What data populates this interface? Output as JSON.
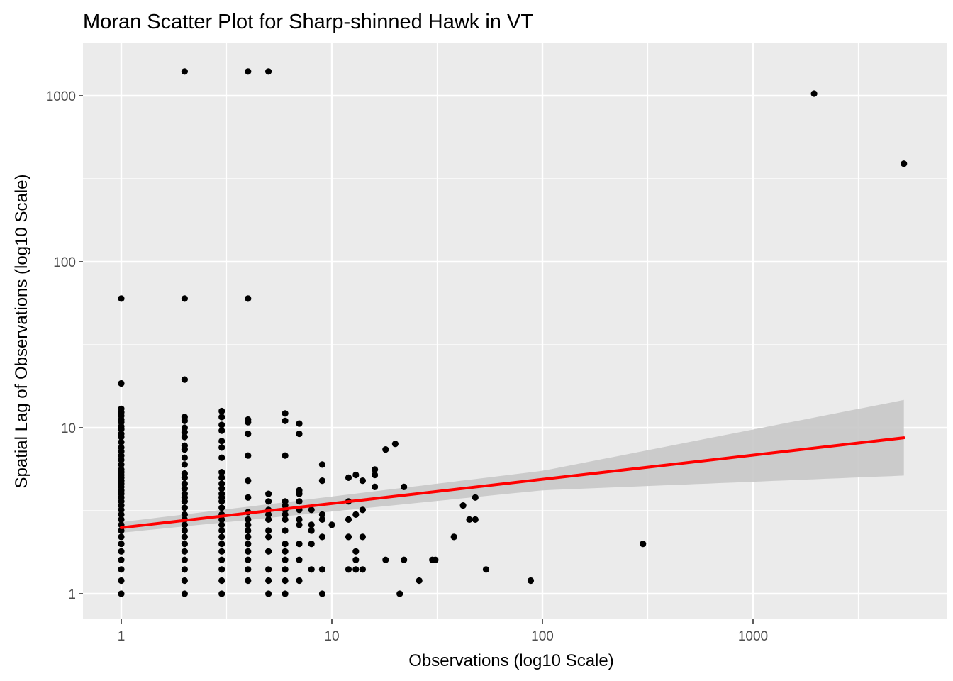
{
  "chart_data": {
    "type": "scatter",
    "title": "Moran Scatter Plot for Sharp-shinned Hawk in VT",
    "xlabel": "Observations (log10 Scale)",
    "ylabel": "Spatial Lag of Observations (log10 Scale)",
    "xscale": "log10",
    "yscale": "log10",
    "xlim": [
      0.65,
      6000
    ],
    "ylim": [
      0.85,
      2000
    ],
    "x_ticks": [
      1,
      10,
      100,
      1000
    ],
    "x_tick_labels": [
      "1",
      "10",
      "100",
      "1000"
    ],
    "y_ticks": [
      1,
      10,
      100,
      1000
    ],
    "y_tick_labels": [
      "1",
      "10",
      "100",
      "1000"
    ],
    "grid": true,
    "legend": "none",
    "colors": {
      "panel_background": "#ebebeb",
      "grid": "#ffffff",
      "points": "#000000",
      "fit_line": "#ff0000",
      "confidence_band": "#c8c8c8"
    },
    "points": [
      [
        1,
        1
      ],
      [
        1,
        1.2
      ],
      [
        1,
        1.4
      ],
      [
        1,
        1.6
      ],
      [
        1,
        1.8
      ],
      [
        1,
        2
      ],
      [
        1,
        2.2
      ],
      [
        1,
        2.4
      ],
      [
        1,
        2.6
      ],
      [
        1,
        2.8
      ],
      [
        1,
        3
      ],
      [
        1,
        3.2
      ],
      [
        1,
        3.4
      ],
      [
        1,
        3.6
      ],
      [
        1,
        3.8
      ],
      [
        1,
        4
      ],
      [
        1,
        4.2
      ],
      [
        1,
        4.4
      ],
      [
        1,
        4.6
      ],
      [
        1,
        4.8
      ],
      [
        1,
        5
      ],
      [
        1,
        5.2
      ],
      [
        1,
        5.4
      ],
      [
        1,
        5.6
      ],
      [
        1,
        6
      ],
      [
        1,
        6.4
      ],
      [
        1,
        6.8
      ],
      [
        1,
        7.2
      ],
      [
        1,
        7.6
      ],
      [
        1,
        8.2
      ],
      [
        1,
        8.8
      ],
      [
        1,
        9.2
      ],
      [
        1,
        9.8
      ],
      [
        1,
        10.2
      ],
      [
        1,
        10.8
      ],
      [
        1,
        11.2
      ],
      [
        1,
        11.8
      ],
      [
        1,
        12.4
      ],
      [
        1,
        13
      ],
      [
        1,
        18.5
      ],
      [
        1,
        60
      ],
      [
        2,
        1
      ],
      [
        2,
        1.2
      ],
      [
        2,
        1.4
      ],
      [
        2,
        1.6
      ],
      [
        2,
        1.8
      ],
      [
        2,
        2
      ],
      [
        2,
        2.2
      ],
      [
        2,
        2.4
      ],
      [
        2,
        2.6
      ],
      [
        2,
        2.8
      ],
      [
        2,
        3
      ],
      [
        2,
        3.3
      ],
      [
        2,
        3.6
      ],
      [
        2,
        3.8
      ],
      [
        2,
        4
      ],
      [
        2,
        4.3
      ],
      [
        2,
        4.6
      ],
      [
        2,
        5
      ],
      [
        2,
        5.3
      ],
      [
        2,
        6
      ],
      [
        2,
        6.6
      ],
      [
        2,
        7.4
      ],
      [
        2,
        7.8
      ],
      [
        2,
        8.8
      ],
      [
        2,
        9.4
      ],
      [
        2,
        10
      ],
      [
        2,
        11
      ],
      [
        2,
        11.6
      ],
      [
        2,
        19.5
      ],
      [
        2,
        60
      ],
      [
        2,
        1400
      ],
      [
        3,
        1
      ],
      [
        3,
        1.2
      ],
      [
        3,
        1.4
      ],
      [
        3,
        1.6
      ],
      [
        3,
        1.8
      ],
      [
        3,
        2
      ],
      [
        3,
        2.2
      ],
      [
        3,
        2.4
      ],
      [
        3,
        2.6
      ],
      [
        3,
        2.8
      ],
      [
        3,
        3
      ],
      [
        3,
        3.3
      ],
      [
        3,
        3.6
      ],
      [
        3,
        3.8
      ],
      [
        3,
        4
      ],
      [
        3,
        4.3
      ],
      [
        3,
        4.6
      ],
      [
        3,
        5
      ],
      [
        3,
        5.4
      ],
      [
        3,
        6.6
      ],
      [
        3,
        7.6
      ],
      [
        3,
        8.3
      ],
      [
        3,
        9.6
      ],
      [
        3,
        10.4
      ],
      [
        3,
        11.6
      ],
      [
        3,
        12.6
      ],
      [
        4,
        1.2
      ],
      [
        4,
        1.4
      ],
      [
        4,
        1.6
      ],
      [
        4,
        1.8
      ],
      [
        4,
        2
      ],
      [
        4,
        2.2
      ],
      [
        4,
        2.4
      ],
      [
        4,
        2.6
      ],
      [
        4,
        2.8
      ],
      [
        4,
        3.1
      ],
      [
        4,
        3.8
      ],
      [
        4,
        4.8
      ],
      [
        4,
        6.8
      ],
      [
        4,
        9.2
      ],
      [
        4,
        10.8
      ],
      [
        4,
        11.2
      ],
      [
        4,
        60
      ],
      [
        4,
        1400
      ],
      [
        5,
        1
      ],
      [
        5,
        1.2
      ],
      [
        5,
        1.4
      ],
      [
        5,
        1.8
      ],
      [
        5,
        2.2
      ],
      [
        5,
        2.4
      ],
      [
        5,
        2.8
      ],
      [
        5,
        3
      ],
      [
        5,
        3.2
      ],
      [
        5,
        3.6
      ],
      [
        5,
        4
      ],
      [
        5,
        1400
      ],
      [
        6,
        1
      ],
      [
        6,
        1.2
      ],
      [
        6,
        1.4
      ],
      [
        6,
        1.6
      ],
      [
        6,
        1.8
      ],
      [
        6,
        2
      ],
      [
        6,
        2.4
      ],
      [
        6,
        2.8
      ],
      [
        6,
        3
      ],
      [
        6,
        3.2
      ],
      [
        6,
        3.4
      ],
      [
        6,
        3.6
      ],
      [
        6,
        6.8
      ],
      [
        6,
        11
      ],
      [
        6,
        12.2
      ],
      [
        7,
        1.2
      ],
      [
        7,
        1.6
      ],
      [
        7,
        2
      ],
      [
        7,
        2.6
      ],
      [
        7,
        2.8
      ],
      [
        7,
        3.2
      ],
      [
        7,
        3.6
      ],
      [
        7,
        4
      ],
      [
        7,
        4.2
      ],
      [
        7,
        9.2
      ],
      [
        7,
        10.6
      ],
      [
        8,
        1.4
      ],
      [
        8,
        2
      ],
      [
        8,
        2.4
      ],
      [
        8,
        2.6
      ],
      [
        8,
        3.2
      ],
      [
        9,
        1
      ],
      [
        9,
        1.4
      ],
      [
        9,
        2.2
      ],
      [
        9,
        2.8
      ],
      [
        9,
        3
      ],
      [
        9,
        4.8
      ],
      [
        9,
        6
      ],
      [
        10,
        2.6
      ],
      [
        12,
        1.4
      ],
      [
        12,
        2.2
      ],
      [
        12,
        2.8
      ],
      [
        12,
        3.6
      ],
      [
        12,
        5
      ],
      [
        13,
        1.4
      ],
      [
        13,
        1.6
      ],
      [
        13,
        1.8
      ],
      [
        13,
        3
      ],
      [
        13,
        5.2
      ],
      [
        14,
        1.4
      ],
      [
        14,
        2.2
      ],
      [
        14,
        3.2
      ],
      [
        14,
        4.8
      ],
      [
        16,
        4.4
      ],
      [
        16,
        5.2
      ],
      [
        16,
        5.6
      ],
      [
        18,
        1.6
      ],
      [
        18,
        7.4
      ],
      [
        20,
        8
      ],
      [
        21,
        1
      ],
      [
        22,
        1.6
      ],
      [
        22,
        4.4
      ],
      [
        26,
        1.2
      ],
      [
        30,
        1.6
      ],
      [
        31,
        1.6
      ],
      [
        38,
        2.2
      ],
      [
        42,
        3.4
      ],
      [
        45,
        2.8
      ],
      [
        48,
        2.8
      ],
      [
        48,
        3.8
      ],
      [
        54,
        1.4
      ],
      [
        88,
        1.2
      ],
      [
        300,
        2
      ],
      [
        1950,
        1030
      ],
      [
        5200,
        390
      ]
    ],
    "fit_line": {
      "x_range": [
        1,
        5200
      ],
      "y_start": 2.5,
      "y_end": 8.7,
      "ci_lower": [
        [
          1,
          2.33
        ],
        [
          100,
          4.2
        ],
        [
          5200,
          5.15
        ]
      ],
      "ci_upper": [
        [
          1,
          2.7
        ],
        [
          100,
          5.5
        ],
        [
          5200,
          14.7
        ]
      ]
    }
  }
}
